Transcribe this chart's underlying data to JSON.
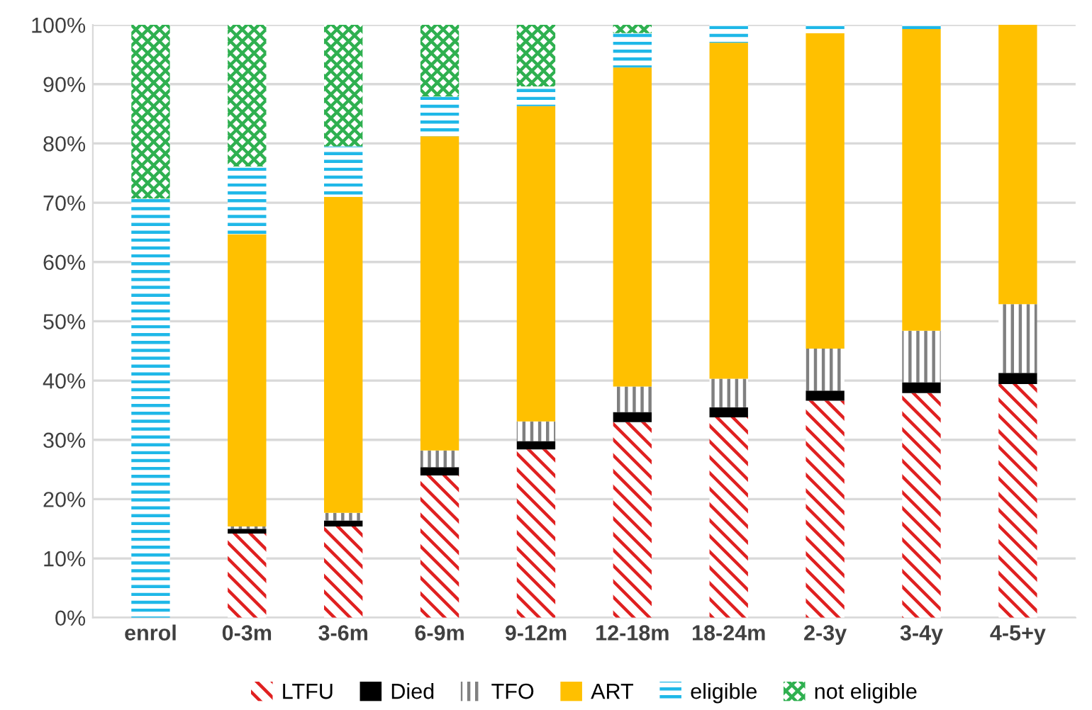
{
  "chart_data": {
    "type": "bar",
    "stacked": true,
    "categories": [
      "enrol",
      "0-3m",
      "3-6m",
      "6-9m",
      "9-12m",
      "12-18m",
      "18-24m",
      "2-3y",
      "3-4y",
      "4-5+y"
    ],
    "series": [
      {
        "name": "LTFU",
        "color": "#e02020",
        "values": [
          0,
          14.2,
          15.4,
          24.0,
          28.4,
          33.0,
          33.8,
          36.6,
          37.9,
          39.4
        ]
      },
      {
        "name": "Died",
        "color": "#000000",
        "values": [
          0,
          0.8,
          1.0,
          1.4,
          1.4,
          1.7,
          1.7,
          1.7,
          1.8,
          1.9
        ]
      },
      {
        "name": "TFO",
        "color": "#808080",
        "values": [
          0,
          0.4,
          1.3,
          2.8,
          3.3,
          4.3,
          4.8,
          7.1,
          8.7,
          11.6
        ]
      },
      {
        "name": "ART",
        "color": "#ffc000",
        "values": [
          0,
          49.3,
          53.3,
          53.0,
          53.2,
          53.8,
          56.7,
          53.2,
          50.9,
          47.1
        ]
      },
      {
        "name": "eligible",
        "color": "#1fb8e8",
        "values": [
          70.7,
          11.4,
          8.5,
          6.7,
          3.3,
          5.8,
          3.0,
          1.4,
          0.7,
          0
        ]
      },
      {
        "name": "not eligible",
        "color": "#2fb050",
        "values": [
          29.3,
          23.9,
          20.5,
          12.1,
          10.4,
          1.4,
          0,
          0,
          0,
          0
        ]
      }
    ],
    "ylim": [
      0,
      100
    ],
    "yticks": [
      {
        "value": 0,
        "label": "0%"
      },
      {
        "value": 10,
        "label": "10%"
      },
      {
        "value": 20,
        "label": "20%"
      },
      {
        "value": 30,
        "label": "30%"
      },
      {
        "value": 40,
        "label": "40%"
      },
      {
        "value": 50,
        "label": "50%"
      },
      {
        "value": 60,
        "label": "60%"
      },
      {
        "value": 70,
        "label": "70%"
      },
      {
        "value": 80,
        "label": "80%"
      },
      {
        "value": 90,
        "label": "90%"
      },
      {
        "value": 100,
        "label": "100%"
      }
    ],
    "grid": "y",
    "legend": "bottom"
  }
}
